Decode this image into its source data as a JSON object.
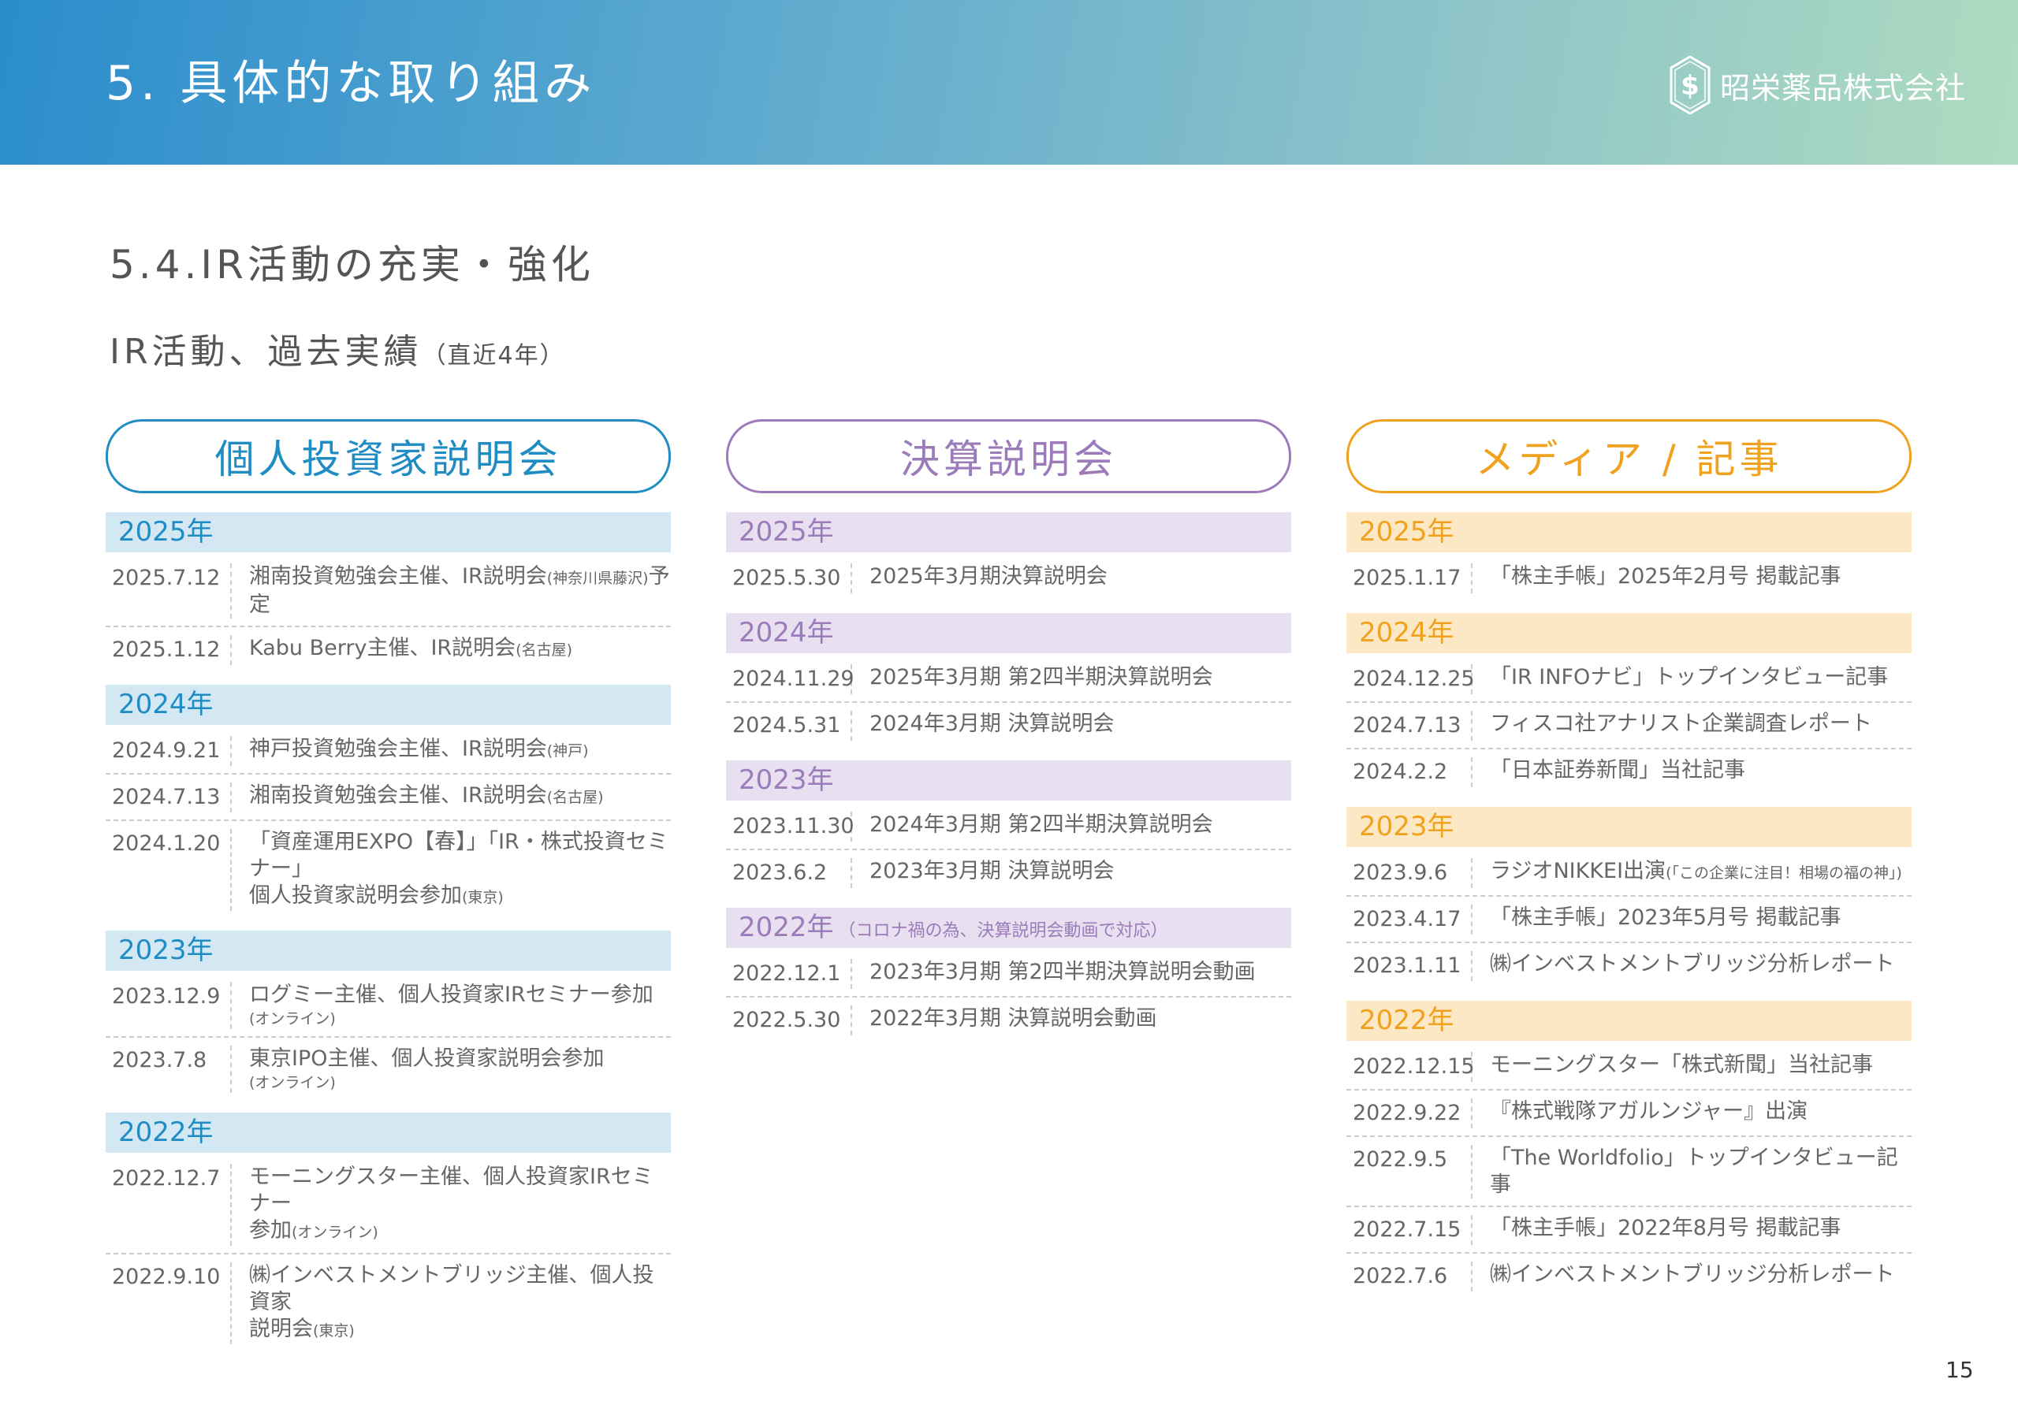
{
  "header": {
    "title": "5. 具体的な取り組み",
    "company": "昭栄薬品株式会社",
    "logo_icon": "hexagon-ss-logo"
  },
  "section_title": "5.4.IR活動の充実・強化",
  "subtitle": {
    "main": "IR活動、過去実績",
    "note": "（直近4年）"
  },
  "colors": {
    "blue": "#1f8cc4",
    "blue_bg": "#d3e8f3",
    "purple": "#9b7bb9",
    "purple_bg": "#e8e0f0",
    "orange": "#f0a21f",
    "orange_bg": "#fde8c6"
  },
  "columns": [
    {
      "title": "個人投資家説明会",
      "theme": "blue",
      "groups": [
        {
          "year": "2025年",
          "items": [
            {
              "date": "2025.7.12",
              "text": "湘南投資勉強会主催、IR説明会",
              "note": "(神奈川県藤沢)",
              "after": "予定"
            },
            {
              "date": "2025.1.12",
              "text": "Kabu Berry主催、IR説明会",
              "note": "(名古屋)"
            }
          ]
        },
        {
          "year": "2024年",
          "items": [
            {
              "date": "2024.9.21",
              "text": "神戸投資勉強会主催、IR説明会",
              "note": "(神戸)"
            },
            {
              "date": "2024.7.13",
              "text": "湘南投資勉強会主催、IR説明会",
              "note": "(名古屋)"
            },
            {
              "date": "2024.1.20",
              "text": "「資産運用EXPO【春】」「IR・株式投資セミナー」\n個人投資家説明会参加",
              "note": "(東京)"
            }
          ]
        },
        {
          "year": "2023年",
          "items": [
            {
              "date": "2023.12.9",
              "text": "ログミー主催、個人投資家IRセミナー参加",
              "note": "(オンライン)",
              "note_block": true
            },
            {
              "date": "2023.7.8",
              "text": "東京IPO主催、個人投資家説明会参加",
              "note": "(オンライン)",
              "note_block": true
            }
          ]
        },
        {
          "year": "2022年",
          "items": [
            {
              "date": "2022.12.7",
              "text": "モーニングスター主催、個人投資家IRセミナー\n参加",
              "note": "(オンライン)"
            },
            {
              "date": "2022.9.10",
              "text": "㈱インベストメントブリッジ主催、個人投資家\n説明会",
              "note": "(東京)"
            }
          ]
        }
      ]
    },
    {
      "title": "決算説明会",
      "theme": "purple",
      "groups": [
        {
          "year": "2025年",
          "items": [
            {
              "date": "2025.5.30",
              "text": "2025年3月期決算説明会"
            }
          ]
        },
        {
          "year": "2024年",
          "items": [
            {
              "date": "2024.11.29",
              "text": "2025年3月期 第2四半期決算説明会"
            },
            {
              "date": "2024.5.31",
              "text": "2024年3月期 決算説明会"
            }
          ]
        },
        {
          "year": "2023年",
          "items": [
            {
              "date": "2023.11.30",
              "text": "2024年3月期 第2四半期決算説明会"
            },
            {
              "date": "2023.6.2",
              "text": "2023年3月期 決算説明会"
            }
          ]
        },
        {
          "year": "2022年",
          "year_note": "（コロナ禍の為、決算説明会動画で対応）",
          "items": [
            {
              "date": "2022.12.1",
              "text": "2023年3月期 第2四半期決算説明会動画"
            },
            {
              "date": "2022.5.30",
              "text": "2022年3月期 決算説明会動画"
            }
          ]
        }
      ]
    },
    {
      "title": "メディア / 記事",
      "theme": "orange",
      "groups": [
        {
          "year": "2025年",
          "items": [
            {
              "date": "2025.1.17",
              "text": "「株主手帳」2025年2月号 掲載記事"
            }
          ]
        },
        {
          "year": "2024年",
          "items": [
            {
              "date": "2024.12.25",
              "text": "「IR INFOナビ」トップインタビュー記事"
            },
            {
              "date": "2024.7.13",
              "text": "フィスコ社アナリスト企業調査レポート"
            },
            {
              "date": "2024.2.2",
              "text": "「日本証券新聞」当社記事"
            }
          ]
        },
        {
          "year": "2023年",
          "items": [
            {
              "date": "2023.9.6",
              "text": "ラジオNIKKEI出演",
              "note": "(「この企業に注目！相場の福の神」)"
            },
            {
              "date": "2023.4.17",
              "text": "「株主手帳」2023年5月号 掲載記事"
            },
            {
              "date": "2023.1.11",
              "text": "㈱インベストメントブリッジ分析レポート"
            }
          ]
        },
        {
          "year": "2022年",
          "items": [
            {
              "date": "2022.12.15",
              "text": "モーニングスター「株式新聞」当社記事"
            },
            {
              "date": "2022.9.22",
              "text": "『株式戦隊アガルンジャー』出演"
            },
            {
              "date": "2022.9.5",
              "text": "「The Worldfolio」トップインタビュー記事"
            },
            {
              "date": "2022.7.15",
              "text": "「株主手帳」2022年8月号 掲載記事"
            },
            {
              "date": "2022.7.6",
              "text": "㈱インベストメントブリッジ分析レポート"
            }
          ]
        }
      ]
    }
  ],
  "page_number": "15"
}
